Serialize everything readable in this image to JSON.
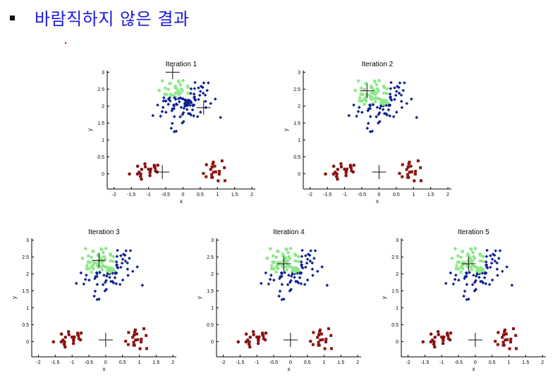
{
  "heading": {
    "text": "바람직하지 않은 결과"
  },
  "colors": {
    "green": "#8de88a",
    "blue": "#0b1f8f",
    "red": "#8b1212",
    "heading": "#1a1ad8"
  },
  "chart_data": [
    {
      "type": "scatter",
      "title": "Iteration 1",
      "xlabel": "x",
      "ylabel": "y",
      "xlim": [
        -2.2,
        2.1
      ],
      "ylim": [
        -0.45,
        3.05
      ],
      "xticks": [
        "-2",
        "-1.5",
        "-1",
        "-0.5",
        "0",
        "0.5",
        "1",
        "1.5",
        "2"
      ],
      "yticks": [
        "0",
        "0.5",
        "1",
        "1.5",
        "2",
        "2.5",
        "3"
      ],
      "centroids": [
        [
          -0.3,
          3.0
        ],
        [
          0.6,
          1.95
        ],
        [
          -0.6,
          0.05
        ]
      ]
    },
    {
      "type": "scatter",
      "title": "Iteration 2",
      "xlabel": "x",
      "ylabel": "y",
      "xlim": [
        -2.2,
        2.1
      ],
      "ylim": [
        -0.45,
        3.05
      ],
      "xticks": [
        "-2",
        "-1.5",
        "-1",
        "-0.5",
        "0",
        "0.5",
        "1",
        "1.5",
        "2"
      ],
      "yticks": [
        "0",
        "0.5",
        "1",
        "1.5",
        "2",
        "2.5",
        "3"
      ],
      "centroids": [
        [
          -0.35,
          2.45
        ],
        [
          0.0,
          0.05
        ]
      ]
    },
    {
      "type": "scatter",
      "title": "Iteration 3",
      "xlabel": "x",
      "ylabel": "y",
      "xlim": [
        -2.2,
        2.1
      ],
      "ylim": [
        -0.45,
        3.05
      ],
      "xticks": [
        "-2",
        "-1.5",
        "-1",
        "-0.5",
        "0",
        "0.5",
        "1",
        "1.5",
        "2"
      ],
      "yticks": [
        "0",
        "0.5",
        "1",
        "1.5",
        "2",
        "2.5",
        "3"
      ],
      "centroids": [
        [
          -0.2,
          2.4
        ],
        [
          0.0,
          0.05
        ]
      ]
    },
    {
      "type": "scatter",
      "title": "Iteration 4",
      "xlabel": "x",
      "ylabel": "y",
      "xlim": [
        -2.2,
        2.1
      ],
      "ylim": [
        -0.45,
        3.05
      ],
      "xticks": [
        "-2",
        "-1.5",
        "-1",
        "-0.5",
        "0",
        "0.5",
        "1",
        "1.5",
        "2"
      ],
      "yticks": [
        "0",
        "0.5",
        "1",
        "1.5",
        "2",
        "2.5",
        "3"
      ],
      "centroids": [
        [
          -0.2,
          2.3
        ],
        [
          0.0,
          0.05
        ]
      ]
    },
    {
      "type": "scatter",
      "title": "Iteration 5",
      "xlabel": "x",
      "ylabel": "y",
      "xlim": [
        -2.2,
        2.1
      ],
      "ylim": [
        -0.45,
        3.05
      ],
      "xticks": [
        "-2",
        "-1.5",
        "-1",
        "-0.5",
        "0",
        "0.5",
        "1",
        "1.5",
        "2"
      ],
      "yticks": [
        "0",
        "0.5",
        "1",
        "1.5",
        "2",
        "2.5",
        "3"
      ],
      "centroids": [
        [
          -0.2,
          2.3
        ],
        [
          0.0,
          0.05
        ]
      ]
    }
  ]
}
